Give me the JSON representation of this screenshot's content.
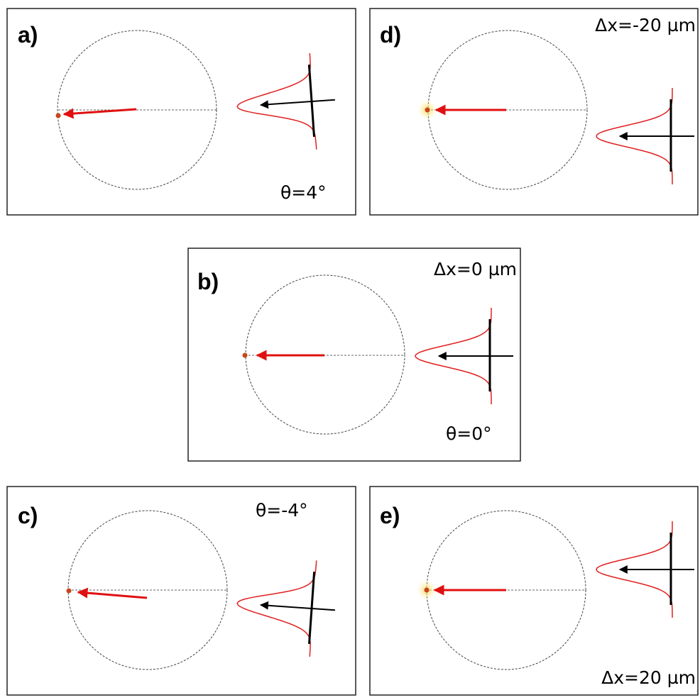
{
  "panels": [
    {
      "label": "a)",
      "annotations": [
        "θ=4°"
      ]
    },
    {
      "label": "d)",
      "annotations": [
        "Δx=-20 µm"
      ]
    },
    {
      "label": "b)",
      "annotations": [
        "Δx=0 µm",
        "θ=0°"
      ]
    },
    {
      "label": "c)",
      "annotations": [
        "θ=-4°"
      ]
    },
    {
      "label": "e)",
      "annotations": [
        "Δx=20 µm"
      ]
    }
  ]
}
